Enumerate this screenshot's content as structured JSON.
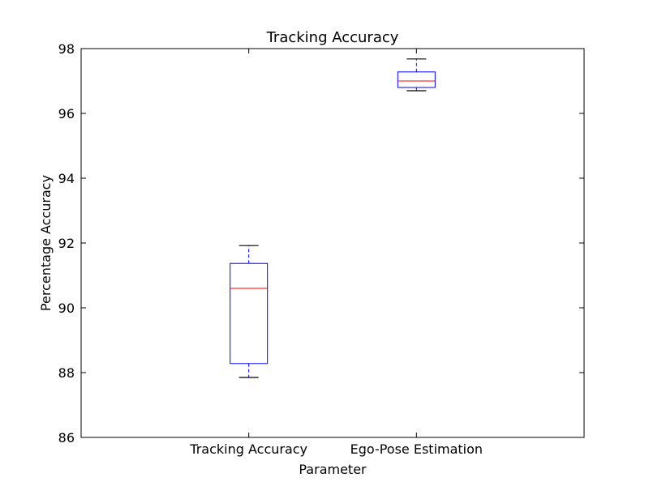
{
  "chart_data": {
    "type": "box",
    "title": "Tracking Accuracy",
    "xlabel": "Parameter",
    "ylabel": "Percentage Accuracy",
    "ylim": [
      86,
      98
    ],
    "yticks": [
      86,
      88,
      90,
      92,
      94,
      96,
      98
    ],
    "categories": [
      "Tracking Accuracy",
      "Ego-Pose Estimation"
    ],
    "boxes": [
      {
        "category": "Tracking Accuracy",
        "whisker_low": 87.85,
        "q1": 88.28,
        "median": 90.6,
        "q3": 91.37,
        "whisker_high": 91.92
      },
      {
        "category": "Ego-Pose Estimation",
        "whisker_low": 96.7,
        "q1": 96.8,
        "median": 97.0,
        "q3": 97.28,
        "whisker_high": 97.68
      }
    ],
    "grid": false,
    "colors": {
      "box": "#0000ff",
      "median": "#ff0000",
      "cap": "#000000",
      "axis": "#000000"
    }
  }
}
